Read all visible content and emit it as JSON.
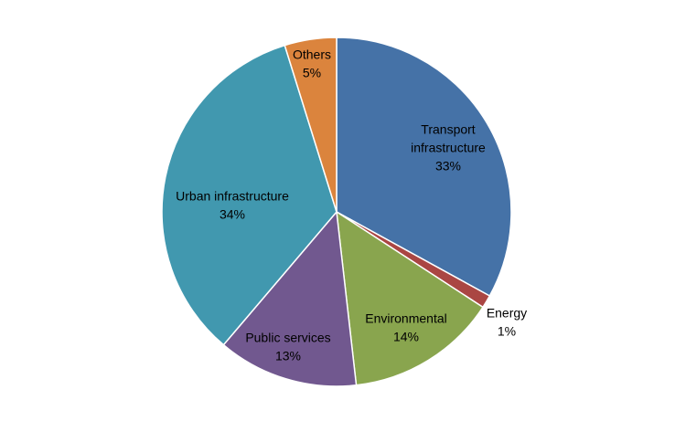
{
  "chart_data": {
    "type": "pie",
    "title": "",
    "start_angle_deg": 0,
    "direction": "clockwise",
    "legend": "none",
    "slices": [
      {
        "label_lines": [
          "Transport",
          "infrastructure"
        ],
        "percent_label": "33%",
        "value": 33,
        "color": "#4572A7",
        "label_inside": true
      },
      {
        "label_lines": [
          "Energy"
        ],
        "percent_label": "1%",
        "value": 1.2,
        "color": "#AA4643",
        "label_inside": false
      },
      {
        "label_lines": [
          "Environmental"
        ],
        "percent_label": "14%",
        "value": 14,
        "color": "#89A54E",
        "label_inside": true
      },
      {
        "label_lines": [
          "Public services"
        ],
        "percent_label": "13%",
        "value": 13,
        "color": "#71588F",
        "label_inside": true
      },
      {
        "label_lines": [
          "Urban infrastructure"
        ],
        "percent_label": "34%",
        "value": 34,
        "color": "#4198AF",
        "label_inside": true
      },
      {
        "label_lines": [
          "Others"
        ],
        "percent_label": "5%",
        "value": 4.8,
        "color": "#DB843D",
        "label_inside": true
      }
    ]
  }
}
